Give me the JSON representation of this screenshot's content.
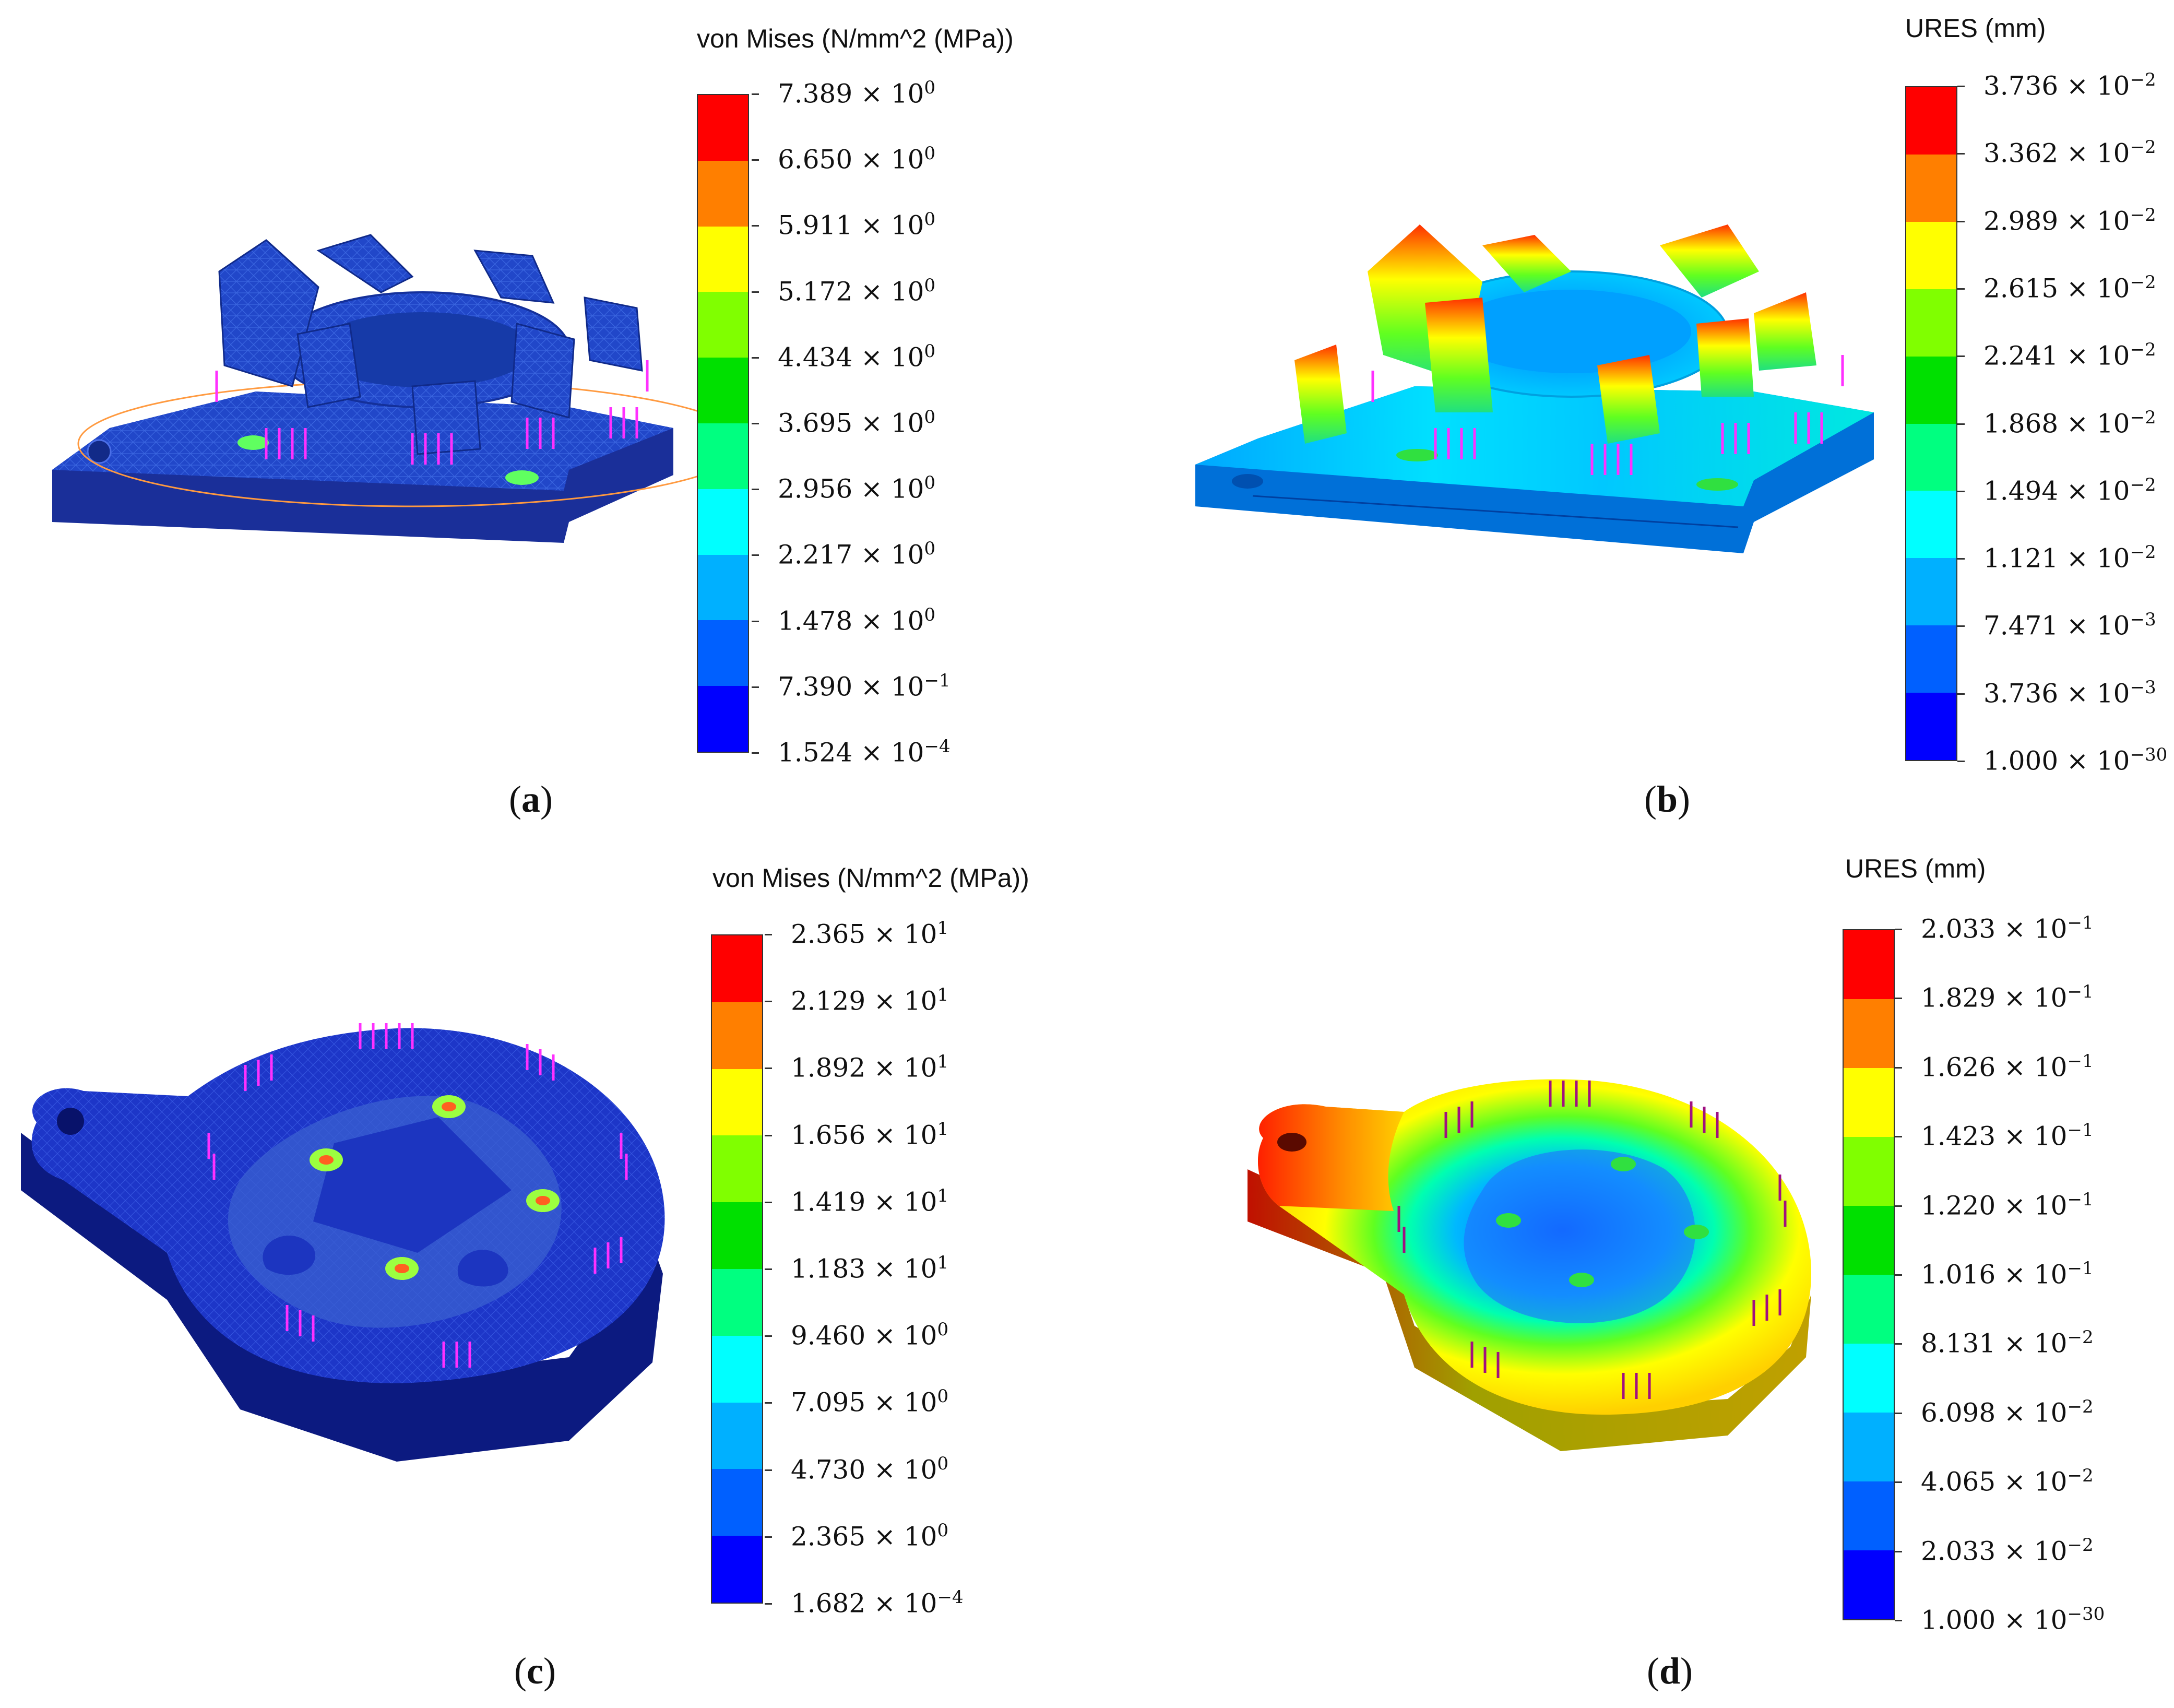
{
  "colors": {
    "scale": [
      "#ff0000",
      "#ff7f00",
      "#ffff00",
      "#80ff00",
      "#00e000",
      "#00ff80",
      "#00ffff",
      "#00b0ff",
      "#0060ff",
      "#0000ff"
    ],
    "mesh_blue": "#1f3fb8",
    "load_arrow": "#ff30ff"
  },
  "panels": [
    {
      "id": "a",
      "caption": "a",
      "legend_title": "von Mises (N/mm^2 (MPa))",
      "labels": [
        {
          "m": "7.389",
          "e": "0"
        },
        {
          "m": "6.650",
          "e": "0"
        },
        {
          "m": "5.911",
          "e": "0"
        },
        {
          "m": "5.172",
          "e": "0"
        },
        {
          "m": "4.434",
          "e": "0"
        },
        {
          "m": "3.695",
          "e": "0"
        },
        {
          "m": "2.956",
          "e": "0"
        },
        {
          "m": "2.217",
          "e": "0"
        },
        {
          "m": "1.478",
          "e": "0"
        },
        {
          "m": "7.390",
          "e": "−1"
        },
        {
          "m": "1.524",
          "e": "−4"
        }
      ]
    },
    {
      "id": "b",
      "caption": "b",
      "legend_title": "URES (mm)",
      "labels": [
        {
          "m": "3.736",
          "e": "−2"
        },
        {
          "m": "3.362",
          "e": "−2"
        },
        {
          "m": "2.989",
          "e": "−2"
        },
        {
          "m": "2.615",
          "e": "−2"
        },
        {
          "m": "2.241",
          "e": "−2"
        },
        {
          "m": "1.868",
          "e": "−2"
        },
        {
          "m": "1.494",
          "e": "−2"
        },
        {
          "m": "1.121",
          "e": "−2"
        },
        {
          "m": "7.471",
          "e": "−3"
        },
        {
          "m": "3.736",
          "e": "−3"
        },
        {
          "m": "1.000",
          "e": "−30"
        }
      ]
    },
    {
      "id": "c",
      "caption": "c",
      "legend_title": "von Mises (N/mm^2 (MPa))",
      "labels": [
        {
          "m": "2.365",
          "e": "1"
        },
        {
          "m": "2.129",
          "e": "1"
        },
        {
          "m": "1.892",
          "e": "1"
        },
        {
          "m": "1.656",
          "e": "1"
        },
        {
          "m": "1.419",
          "e": "1"
        },
        {
          "m": "1.183",
          "e": "1"
        },
        {
          "m": "9.460",
          "e": "0"
        },
        {
          "m": "7.095",
          "e": "0"
        },
        {
          "m": "4.730",
          "e": "0"
        },
        {
          "m": "2.365",
          "e": "0"
        },
        {
          "m": "1.682",
          "e": "−4"
        }
      ]
    },
    {
      "id": "d",
      "caption": "d",
      "legend_title": "URES (mm)",
      "labels": [
        {
          "m": "2.033",
          "e": "−1"
        },
        {
          "m": "1.829",
          "e": "−1"
        },
        {
          "m": "1.626",
          "e": "−1"
        },
        {
          "m": "1.423",
          "e": "−1"
        },
        {
          "m": "1.220",
          "e": "−1"
        },
        {
          "m": "1.016",
          "e": "−1"
        },
        {
          "m": "8.131",
          "e": "−2"
        },
        {
          "m": "6.098",
          "e": "−2"
        },
        {
          "m": "4.065",
          "e": "−2"
        },
        {
          "m": "2.033",
          "e": "−2"
        },
        {
          "m": "1.000",
          "e": "−30"
        }
      ]
    }
  ]
}
